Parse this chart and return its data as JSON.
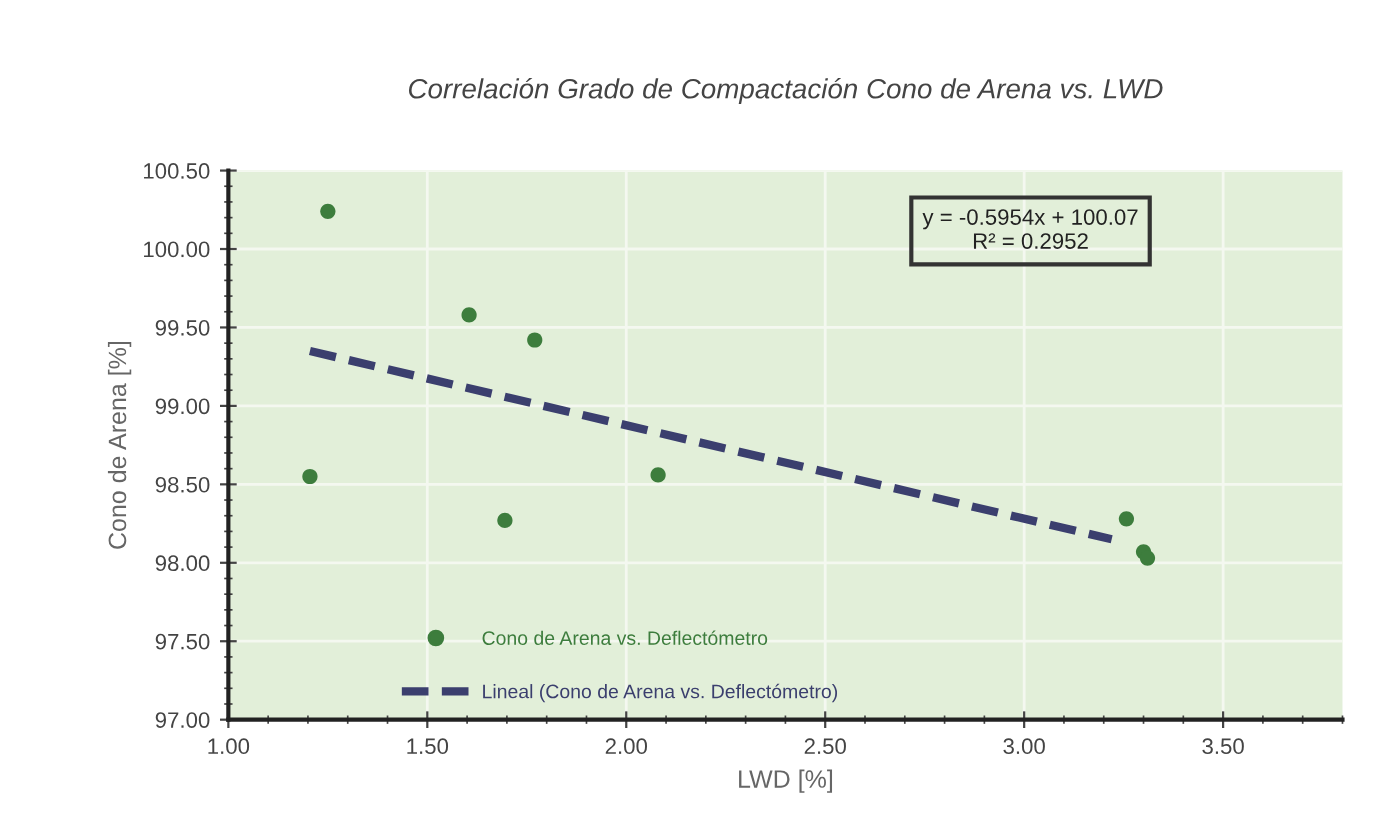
{
  "chart_data": {
    "type": "scatter",
    "title": "Correlación Grado de Compactación Cono de Arena vs. LWD",
    "xlabel": "LWD [%]",
    "ylabel": "Cono de Arena [%]",
    "series": [
      {
        "name": "Cono de Arena vs. Deflectómetro",
        "color": "#3d7d3d",
        "marker": "circle",
        "x": [
          1.25,
          1.205,
          1.605,
          1.77,
          1.695,
          2.08,
          3.257,
          3.3,
          3.31
        ],
        "values": [
          100.24,
          98.55,
          99.58,
          99.42,
          98.27,
          98.56,
          98.28,
          98.07,
          98.03
        ]
      },
      {
        "name": "Lineal (Cono de Arena vs. Deflectómetro)",
        "type": "line",
        "color": "#3b3f6e",
        "line_style": "dashed",
        "marker": "none",
        "x": [
          1.205,
          3.22
        ],
        "values": [
          99.35,
          98.15
        ]
      }
    ],
    "annotations": [
      "y = -0.5954x + 100.07\nR² = 0.2952"
    ],
    "xlim": [
      1.0,
      3.8
    ],
    "xticks": [
      {
        "value": 1.0,
        "label": "1.00"
      },
      {
        "value": 1.5,
        "label": "1.50"
      },
      {
        "value": 2.0,
        "label": "2.00"
      },
      {
        "value": 2.5,
        "label": "2.50"
      },
      {
        "value": 3.0,
        "label": "3.00"
      },
      {
        "value": 3.5,
        "label": "3.50"
      }
    ],
    "ylim": [
      97.0,
      100.5
    ],
    "yticks": [
      {
        "value": 97.0,
        "label": "97.00"
      },
      {
        "value": 97.5,
        "label": "97.50"
      },
      {
        "value": 98.0,
        "label": "98.00"
      },
      {
        "value": 98.5,
        "label": "98.50"
      },
      {
        "value": 99.0,
        "label": "99.00"
      },
      {
        "value": 99.5,
        "label": "99.50"
      },
      {
        "value": 100.0,
        "label": "100.00"
      },
      {
        "value": 100.5,
        "label": "100.50"
      }
    ],
    "grid": true,
    "legend": "bottom left"
  }
}
